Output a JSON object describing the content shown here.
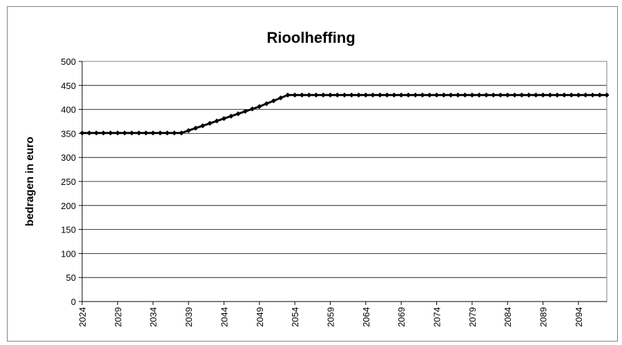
{
  "chart_data": {
    "type": "line",
    "title": "Rioolheffing",
    "xlabel": "",
    "ylabel": "bedragen in euro",
    "ylim": [
      0,
      500
    ],
    "yticks": [
      0,
      50,
      100,
      150,
      200,
      250,
      300,
      350,
      400,
      450,
      500
    ],
    "xlim": [
      2024,
      2098
    ],
    "xticks": [
      2024,
      2029,
      2034,
      2039,
      2044,
      2049,
      2054,
      2059,
      2064,
      2069,
      2074,
      2079,
      2084,
      2089,
      2094
    ],
    "grid": true,
    "legend": "none",
    "line_color": "#000000",
    "series": [
      {
        "x": [
          2024,
          2025,
          2026,
          2027,
          2028,
          2029,
          2030,
          2031,
          2032,
          2033,
          2034,
          2035,
          2036,
          2037,
          2038,
          2039,
          2040,
          2041,
          2042,
          2043,
          2044,
          2045,
          2046,
          2047,
          2048,
          2049,
          2050,
          2051,
          2052,
          2053,
          2054,
          2055,
          2056,
          2057,
          2058,
          2059,
          2060,
          2061,
          2062,
          2063,
          2064,
          2065,
          2066,
          2067,
          2068,
          2069,
          2070,
          2071,
          2072,
          2073,
          2074,
          2075,
          2076,
          2077,
          2078,
          2079,
          2080,
          2081,
          2082,
          2083,
          2084,
          2085,
          2086,
          2087,
          2088,
          2089,
          2090,
          2091,
          2092,
          2093,
          2094,
          2095,
          2096,
          2097,
          2098
        ],
        "values": [
          351,
          351,
          351,
          351,
          351,
          351,
          351,
          351,
          351,
          351,
          351,
          351,
          351,
          351,
          351,
          356,
          361,
          366,
          371,
          376,
          381,
          386,
          391,
          396,
          401,
          406,
          412,
          418,
          424,
          430,
          430,
          430,
          430,
          430,
          430,
          430,
          430,
          430,
          430,
          430,
          430,
          430,
          430,
          430,
          430,
          430,
          430,
          430,
          430,
          430,
          430,
          430,
          430,
          430,
          430,
          430,
          430,
          430,
          430,
          430,
          430,
          430,
          430,
          430,
          430,
          430,
          430,
          430,
          430,
          430,
          430,
          430,
          430,
          430,
          430
        ]
      }
    ]
  }
}
